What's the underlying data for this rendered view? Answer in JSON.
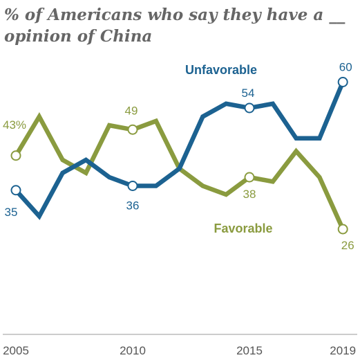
{
  "title": "% of Americans who say they have a __ opinion of China",
  "chart_data": {
    "type": "line",
    "title": "% of Americans who say they have a __ opinion of China",
    "x": [
      2005,
      2006,
      2007,
      2008,
      2009,
      2010,
      2011,
      2012,
      2013,
      2014,
      2015,
      2016,
      2017,
      2018,
      2019
    ],
    "xticks": [
      "2005",
      "2010",
      "2015",
      "2019"
    ],
    "ylim": [
      0,
      80
    ],
    "series": [
      {
        "name": "Unfavorable",
        "color": "#1c6291",
        "values": [
          35,
          29,
          39,
          42,
          38,
          36,
          36,
          40,
          52,
          55,
          54,
          55,
          47,
          47,
          60
        ],
        "labels": [
          {
            "index": 0,
            "text": "35"
          },
          {
            "index": 5,
            "text": "36"
          },
          {
            "index": 10,
            "text": "54"
          },
          {
            "index": 14,
            "text": "60"
          }
        ]
      },
      {
        "name": "Favorable",
        "color": "#8a9b3f",
        "values": [
          43,
          52,
          42,
          39,
          50,
          49,
          51,
          40,
          36,
          34,
          38,
          37,
          44,
          38,
          26
        ],
        "labels": [
          {
            "index": 0,
            "text": "43%"
          },
          {
            "index": 5,
            "text": "49"
          },
          {
            "index": 10,
            "text": "38"
          },
          {
            "index": 14,
            "text": "26"
          }
        ]
      }
    ],
    "grid": false,
    "legend": "inline labels"
  }
}
